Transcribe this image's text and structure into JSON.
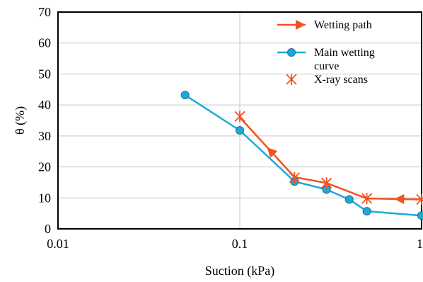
{
  "chart_data": {
    "type": "line",
    "xscale": "log",
    "xlim": [
      0.01,
      1
    ],
    "ylim": [
      0,
      70
    ],
    "xlabel": "Suction (kPa)",
    "ylabel": "θ (%)",
    "x_tick_labels": [
      "0.01",
      "0.1",
      "1"
    ],
    "y_tick_labels": [
      "0",
      "10",
      "20",
      "30",
      "40",
      "50",
      "60",
      "70"
    ],
    "grid": true,
    "legend_position": "top-right",
    "series": [
      {
        "name": "Wetting path",
        "color": "#f4511e",
        "marker": "arrow",
        "x": [
          1.0,
          0.5,
          0.3,
          0.2,
          0.1
        ],
        "y": [
          9.5,
          9.8,
          14.8,
          16.7,
          36.0
        ]
      },
      {
        "name": "Main wetting curve",
        "color": "#1fa9d6",
        "marker": "circle",
        "x": [
          0.05,
          0.1,
          0.2,
          0.3,
          0.4,
          0.5,
          1.0
        ],
        "y": [
          43.2,
          31.8,
          15.3,
          12.7,
          9.5,
          5.7,
          4.3
        ]
      },
      {
        "name": "X-ray scans",
        "color": "#f4511e",
        "marker": "asterisk",
        "x": [
          0.1,
          0.2,
          0.3,
          0.5,
          1.0
        ],
        "y": [
          36.3,
          16.5,
          14.8,
          9.8,
          9.5
        ]
      }
    ]
  }
}
